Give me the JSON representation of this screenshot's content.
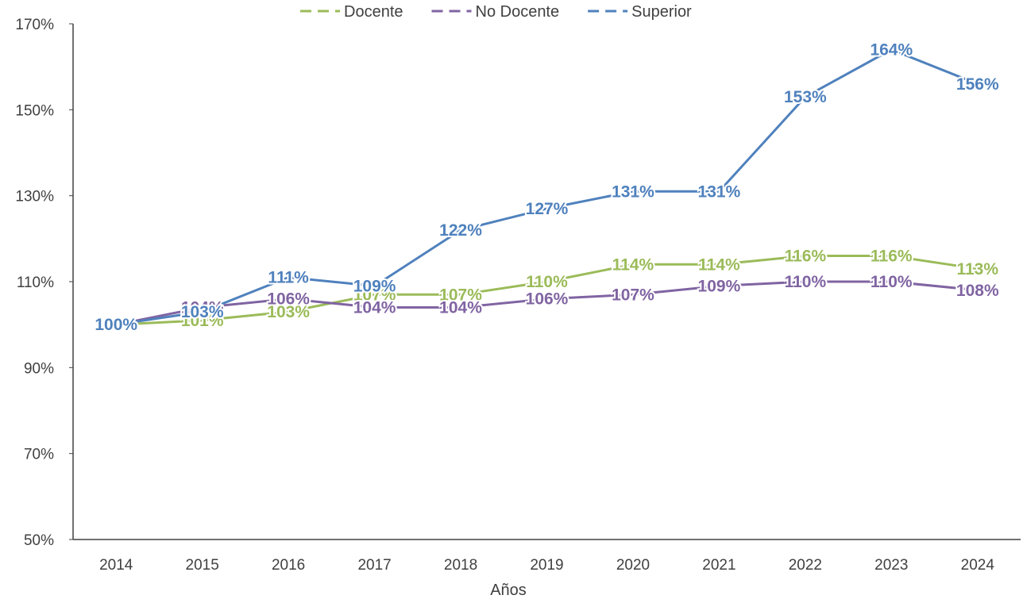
{
  "chart_data": {
    "type": "line",
    "title": "",
    "xlabel": "Años",
    "ylabel": "",
    "x": [
      "2014",
      "2015",
      "2016",
      "2017",
      "2018",
      "2019",
      "2020",
      "2021",
      "2022",
      "2023",
      "2024"
    ],
    "ylim": [
      50,
      170
    ],
    "yticks": [
      50,
      70,
      90,
      110,
      130,
      150,
      170
    ],
    "ytick_labels": [
      "50%",
      "70%",
      "90%",
      "110%",
      "130%",
      "150%",
      "170%"
    ],
    "grid": false,
    "legend_position": "top",
    "series": [
      {
        "name": "Docente",
        "color": "#9BBB59",
        "values": [
          100,
          101,
          103,
          107,
          107,
          110,
          114,
          114,
          116,
          116,
          113
        ],
        "labels": [
          "100%",
          "101%",
          "103%",
          "107%",
          "107%",
          "110%",
          "114%",
          "114%",
          "116%",
          "116%",
          "113%"
        ]
      },
      {
        "name": "No Docente",
        "color": "#8064A2",
        "values": [
          100,
          104,
          106,
          104,
          104,
          106,
          107,
          109,
          110,
          110,
          108
        ],
        "labels": [
          "100%",
          "104%",
          "106%",
          "104%",
          "104%",
          "106%",
          "107%",
          "109%",
          "110%",
          "110%",
          "108%"
        ]
      },
      {
        "name": "Superior",
        "color": "#4F81BD",
        "values": [
          100,
          103,
          111,
          109,
          122,
          127,
          131,
          131,
          153,
          164,
          156
        ],
        "labels": [
          "100%",
          "103%",
          "111%",
          "109%",
          "122%",
          "127%",
          "131%",
          "131%",
          "153%",
          "164%",
          "156%"
        ]
      }
    ]
  }
}
